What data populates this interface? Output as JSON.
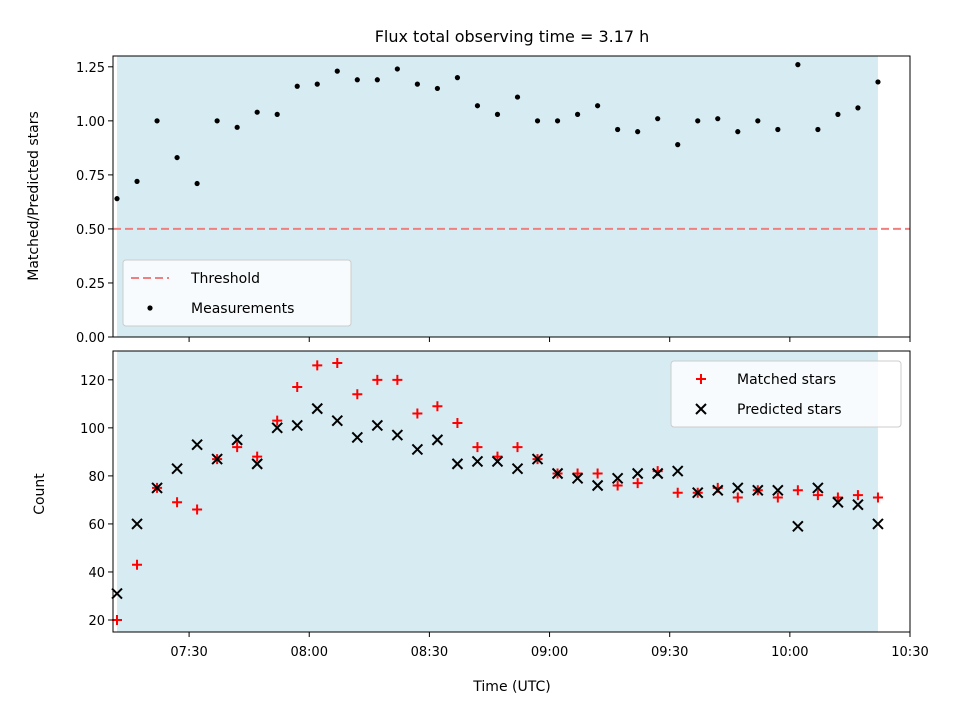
{
  "chart_data": [
    {
      "type": "scatter",
      "title": "Flux total observing time = 3.17 h",
      "xlabel": "",
      "ylabel": "Matched/Predicted stars",
      "xlim": [
        "07:11",
        "10:30"
      ],
      "ylim": [
        0,
        1.3
      ],
      "yticks": [
        "0.00",
        "0.25",
        "0.50",
        "0.75",
        "1.00",
        "1.25"
      ],
      "grid": false,
      "legend_position": "lower-left",
      "shaded_span": {
        "from": "07:12",
        "to": "10:22",
        "color": "#add8e6"
      },
      "series": [
        {
          "name": "Threshold",
          "kind": "hline",
          "value": 0.5,
          "color": "#f08080",
          "style": "dashed"
        },
        {
          "name": "Measurements",
          "kind": "points",
          "color": "#000000",
          "x": [
            "07:12",
            "07:17",
            "07:22",
            "07:27",
            "07:32",
            "07:37",
            "07:42",
            "07:47",
            "07:52",
            "07:57",
            "08:02",
            "08:07",
            "08:12",
            "08:17",
            "08:22",
            "08:27",
            "08:32",
            "08:37",
            "08:42",
            "08:47",
            "08:52",
            "08:57",
            "09:02",
            "09:07",
            "09:12",
            "09:17",
            "09:22",
            "09:27",
            "09:32",
            "09:37",
            "09:42",
            "09:47",
            "09:52",
            "09:57",
            "10:02",
            "10:07",
            "10:12",
            "10:17",
            "10:22"
          ],
          "y": [
            0.64,
            0.72,
            1.0,
            0.83,
            0.71,
            1.0,
            0.97,
            1.04,
            1.03,
            1.16,
            1.17,
            1.23,
            1.19,
            1.19,
            1.24,
            1.17,
            1.15,
            1.2,
            1.07,
            1.03,
            1.11,
            1.0,
            1.0,
            1.03,
            1.07,
            0.96,
            0.95,
            1.01,
            0.89,
            1.0,
            1.01,
            0.95,
            1.0,
            0.96,
            1.26,
            0.96,
            1.03,
            1.06,
            1.18
          ]
        }
      ]
    },
    {
      "type": "scatter",
      "title": "",
      "xlabel": "Time (UTC)",
      "ylabel": "Count",
      "xlim": [
        "07:11",
        "10:30"
      ],
      "ylim": [
        15,
        132
      ],
      "yticks": [
        "20",
        "40",
        "60",
        "80",
        "100",
        "120"
      ],
      "xticks": [
        "07:30",
        "08:00",
        "08:30",
        "09:00",
        "09:30",
        "10:00",
        "10:30"
      ],
      "grid": false,
      "legend_position": "upper-right",
      "shaded_span": {
        "from": "07:12",
        "to": "10:22",
        "color": "#add8e6"
      },
      "series": [
        {
          "name": "Matched stars",
          "marker": "plus",
          "color": "#ff0000",
          "x": [
            "07:12",
            "07:17",
            "07:22",
            "07:27",
            "07:32",
            "07:37",
            "07:42",
            "07:47",
            "07:52",
            "07:57",
            "08:02",
            "08:07",
            "08:12",
            "08:17",
            "08:22",
            "08:27",
            "08:32",
            "08:37",
            "08:42",
            "08:47",
            "08:52",
            "08:57",
            "09:02",
            "09:07",
            "09:12",
            "09:17",
            "09:22",
            "09:27",
            "09:32",
            "09:37",
            "09:42",
            "09:47",
            "09:52",
            "09:57",
            "10:02",
            "10:07",
            "10:12",
            "10:17",
            "10:22"
          ],
          "y": [
            20,
            43,
            75,
            69,
            66,
            87,
            92,
            88,
            103,
            117,
            126,
            127,
            114,
            120,
            120,
            106,
            109,
            102,
            92,
            88,
            92,
            87,
            81,
            81,
            81,
            76,
            77,
            82,
            73,
            73,
            75,
            71,
            74,
            71,
            74,
            72,
            71,
            72,
            71
          ]
        },
        {
          "name": "Predicted stars",
          "marker": "x",
          "color": "#000000",
          "x": [
            "07:12",
            "07:17",
            "07:22",
            "07:27",
            "07:32",
            "07:37",
            "07:42",
            "07:47",
            "07:52",
            "07:57",
            "08:02",
            "08:07",
            "08:12",
            "08:17",
            "08:22",
            "08:27",
            "08:32",
            "08:37",
            "08:42",
            "08:47",
            "08:52",
            "08:57",
            "09:02",
            "09:07",
            "09:12",
            "09:17",
            "09:22",
            "09:27",
            "09:32",
            "09:37",
            "09:42",
            "09:47",
            "09:52",
            "09:57",
            "10:02",
            "10:07",
            "10:12",
            "10:17",
            "10:22"
          ],
          "y": [
            31,
            60,
            75,
            83,
            93,
            87,
            95,
            85,
            100,
            101,
            108,
            103,
            96,
            101,
            97,
            91,
            95,
            85,
            86,
            86,
            83,
            87,
            81,
            79,
            76,
            79,
            81,
            81,
            82,
            73,
            74,
            75,
            74,
            74,
            59,
            75,
            69,
            68,
            60
          ]
        }
      ]
    }
  ]
}
